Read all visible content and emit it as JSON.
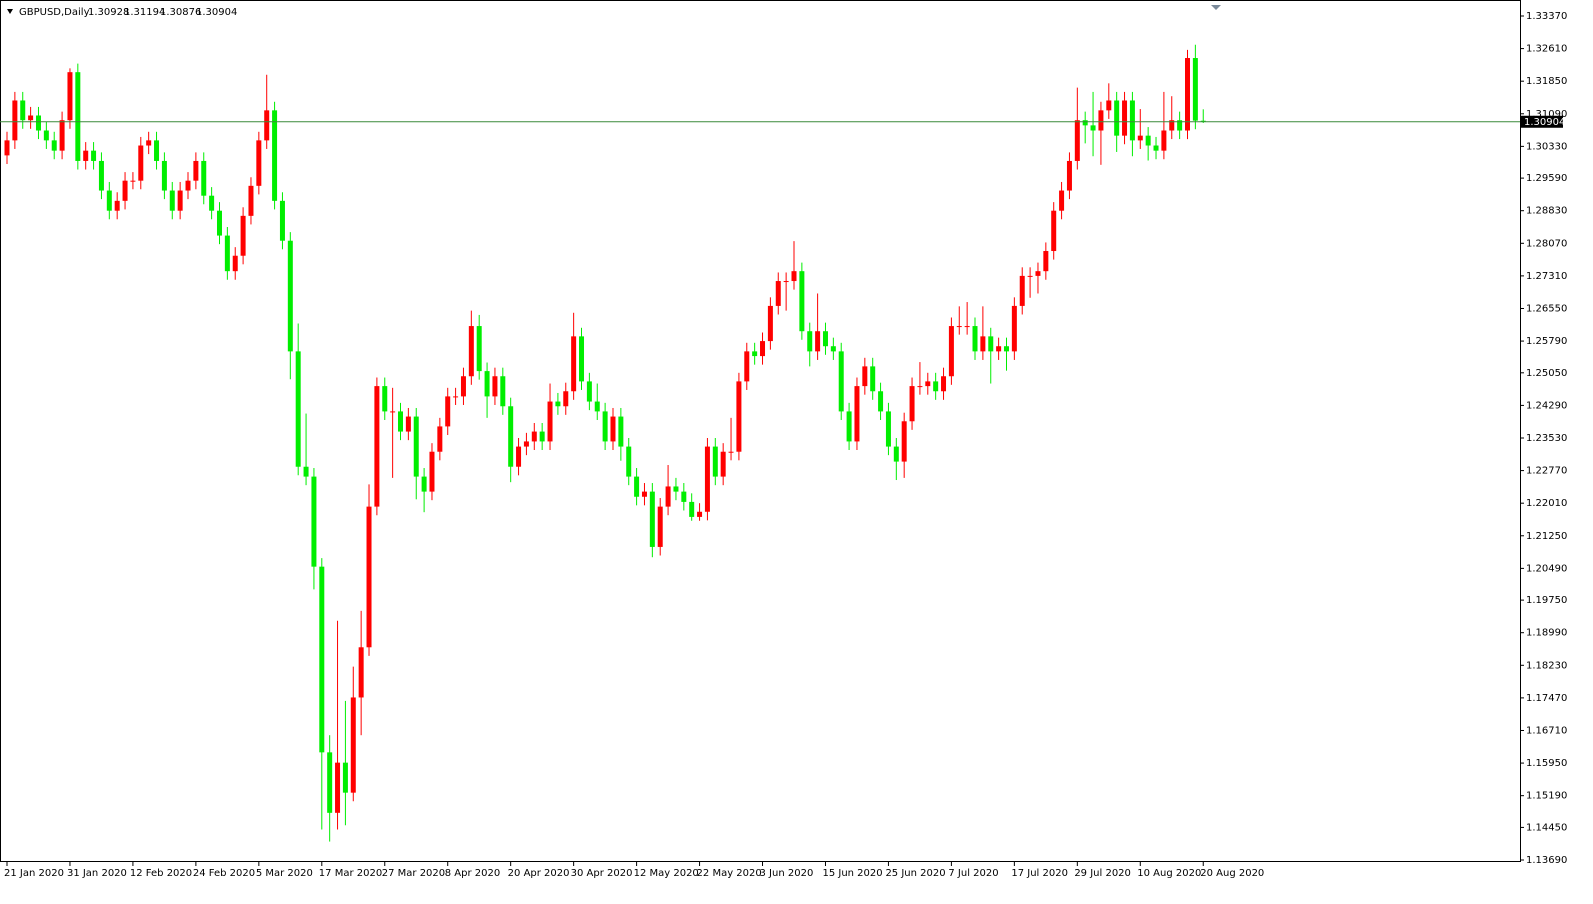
{
  "chart_data": {
    "type": "candlestick",
    "title": "GBPUSD,Daily",
    "categories": [
      "21 Jan 2020",
      null,
      null,
      null,
      null,
      null,
      null,
      null,
      "31 Jan 2020",
      null,
      null,
      null,
      null,
      null,
      null,
      null,
      "12 Feb 2020",
      null,
      null,
      null,
      null,
      null,
      null,
      null,
      "24 Feb 2020",
      null,
      null,
      null,
      null,
      null,
      null,
      null,
      "5 Mar 2020",
      null,
      null,
      null,
      null,
      null,
      null,
      null,
      "17 Mar 2020",
      null,
      null,
      null,
      null,
      null,
      null,
      null,
      "27 Mar 2020",
      null,
      null,
      null,
      null,
      null,
      null,
      null,
      "8 Apr 2020",
      null,
      null,
      null,
      null,
      null,
      null,
      null,
      "20 Apr 2020",
      null,
      null,
      null,
      null,
      null,
      null,
      null,
      "30 Apr 2020",
      null,
      null,
      null,
      null,
      null,
      null,
      null,
      "12 May 2020",
      null,
      null,
      null,
      null,
      null,
      null,
      null,
      "22 May 2020",
      null,
      null,
      null,
      null,
      null,
      null,
      null,
      "3 Jun 2020",
      null,
      null,
      null,
      null,
      null,
      null,
      null,
      "15 Jun 2020",
      null,
      null,
      null,
      null,
      null,
      null,
      null,
      "25 Jun 2020",
      null,
      null,
      null,
      null,
      null,
      null,
      null,
      "7 Jul 2020",
      null,
      null,
      null,
      null,
      null,
      null,
      null,
      "17 Jul 2020",
      null,
      null,
      null,
      null,
      null,
      null,
      null,
      "29 Jul 2020",
      null,
      null,
      null,
      null,
      null,
      null,
      null,
      "10 Aug 2020",
      null,
      null,
      null,
      null,
      null,
      null,
      null,
      "20 Aug 2020"
    ],
    "open": [
      1.3012,
      1.3047,
      1.314,
      1.3094,
      1.3105,
      1.307,
      1.3047,
      1.3023,
      1.3094,
      1.3206,
      1.2999,
      1.3023,
      1.2999,
      1.293,
      1.2883,
      1.2906,
      1.2953,
      1.2953,
      1.3035,
      1.3047,
      1.2999,
      1.293,
      1.2883,
      1.293,
      1.2953,
      1.2999,
      1.2918,
      1.2883,
      1.2825,
      1.2742,
      1.2778,
      1.2871,
      1.2941,
      1.3047,
      1.3117,
      1.2906,
      1.2813,
      1.2555,
      1.2286,
      1.2263,
      1.2053,
      1.162,
      1.1479,
      1.1596,
      1.1526,
      1.1748,
      1.1865,
      1.2193,
      1.2474,
      1.2415,
      1.2415,
      1.2368,
      1.2403,
      1.2263,
      1.2228,
      1.2321,
      1.238,
      1.245,
      1.245,
      1.2497,
      1.2614,
      1.2509,
      1.245,
      1.2497,
      1.2427,
      1.2286,
      1.2333,
      1.2345,
      1.2368,
      1.2345,
      1.2438,
      1.2427,
      1.2462,
      1.259,
      1.2485,
      1.2438,
      1.2415,
      1.2345,
      1.2403,
      1.2333,
      1.2263,
      1.2216,
      1.2228,
      1.2099,
      1.2193,
      1.224,
      1.2228,
      1.2204,
      1.2169,
      1.2181,
      1.2333,
      1.2263,
      1.2321,
      1.2321,
      1.2485,
      1.2555,
      1.2544,
      1.2579,
      1.2661,
      1.2719,
      1.2719,
      1.2742,
      1.2602,
      1.2555,
      1.2602,
      1.2567,
      1.2555,
      1.2415,
      1.2345,
      1.2474,
      1.252,
      1.2462,
      1.2415,
      1.2333,
      1.2298,
      1.2392,
      1.2474,
      1.2474,
      1.2485,
      1.2462,
      1.2497,
      1.2614,
      1.2614,
      1.2614,
      1.2555,
      1.259,
      1.2555,
      1.2567,
      1.2555,
      1.2661,
      1.2731,
      1.2731,
      1.2742,
      1.2789,
      1.2883,
      1.293,
      1.2999,
      1.3094,
      1.3082,
      1.307,
      1.3117,
      1.314,
      1.3058,
      1.314,
      1.3047,
      1.3058,
      1.3035,
      1.3023,
      1.307,
      1.3094,
      1.307,
      1.3239,
      1.30928
    ],
    "high": [
      1.3067,
      1.316,
      1.316,
      1.3125,
      1.3125,
      1.309,
      1.3067,
      1.3114,
      1.3215,
      1.3226,
      1.3043,
      1.3043,
      1.3019,
      1.295,
      1.2926,
      1.2973,
      1.2973,
      1.3055,
      1.3067,
      1.3067,
      1.3019,
      1.295,
      1.295,
      1.2973,
      1.3019,
      1.3019,
      1.2938,
      1.2903,
      1.2845,
      1.2798,
      1.2891,
      1.2961,
      1.3067,
      1.32,
      1.3137,
      1.2926,
      1.2833,
      1.262,
      1.241,
      1.2283,
      1.2073,
      1.166,
      1.1927,
      1.174,
      1.182,
      1.195,
      1.2245,
      1.2494,
      1.2494,
      1.247,
      1.2435,
      1.2423,
      1.2423,
      1.2283,
      1.2341,
      1.24,
      1.247,
      1.247,
      1.2517,
      1.265,
      1.264,
      1.2529,
      1.2517,
      1.2517,
      1.2447,
      1.2353,
      1.2365,
      1.2388,
      1.2388,
      1.248,
      1.2458,
      1.2482,
      1.2645,
      1.261,
      1.2505,
      1.248,
      1.2435,
      1.2423,
      1.2423,
      1.2353,
      1.2283,
      1.2248,
      1.2248,
      1.2213,
      1.229,
      1.226,
      1.2248,
      1.2224,
      1.2201,
      1.2353,
      1.2353,
      1.2341,
      1.24,
      1.2505,
      1.2575,
      1.2575,
      1.2599,
      1.2681,
      1.2739,
      1.2739,
      1.2812,
      1.2762,
      1.2622,
      1.269,
      1.2622,
      1.2587,
      1.2575,
      1.2435,
      1.2494,
      1.254,
      1.254,
      1.2482,
      1.2435,
      1.2353,
      1.2412,
      1.2494,
      1.253,
      1.2505,
      1.2505,
      1.2517,
      1.2634,
      1.266,
      1.267,
      1.2634,
      1.266,
      1.261,
      1.2587,
      1.2587,
      1.2681,
      1.2751,
      1.2751,
      1.2762,
      1.2809,
      1.2903,
      1.295,
      1.3019,
      1.317,
      1.3114,
      1.316,
      1.3137,
      1.318,
      1.316,
      1.316,
      1.316,
      1.312,
      1.3078,
      1.3055,
      1.316,
      1.315,
      1.3114,
      1.3258,
      1.327,
      1.31194
    ],
    "low": [
      1.2992,
      1.3027,
      1.3074,
      1.3074,
      1.305,
      1.3027,
      1.3003,
      1.3003,
      1.3074,
      1.2979,
      1.2979,
      1.2979,
      1.291,
      1.2863,
      1.2863,
      1.2886,
      1.2933,
      1.2933,
      1.3015,
      1.2979,
      1.291,
      1.2863,
      1.2863,
      1.291,
      1.2933,
      1.2898,
      1.2863,
      1.2805,
      1.2722,
      1.2722,
      1.2758,
      1.2851,
      1.2921,
      1.3027,
      1.2886,
      1.2793,
      1.249,
      1.2266,
      1.2243,
      1.2,
      1.144,
      1.1412,
      1.144,
      1.145,
      1.1506,
      1.166,
      1.1845,
      1.2173,
      1.2395,
      1.226,
      1.2348,
      1.2348,
      1.221,
      1.218,
      1.2208,
      1.2301,
      1.236,
      1.243,
      1.243,
      1.2477,
      1.2489,
      1.24,
      1.243,
      1.2407,
      1.225,
      1.2266,
      1.2313,
      1.2325,
      1.2325,
      1.2325,
      1.2407,
      1.2407,
      1.2442,
      1.2465,
      1.2418,
      1.2395,
      1.2325,
      1.2325,
      1.23,
      1.2243,
      1.2196,
      1.2196,
      1.2075,
      1.2079,
      1.2173,
      1.2208,
      1.2184,
      1.216,
      1.216,
      1.2161,
      1.2243,
      1.2243,
      1.2301,
      1.2301,
      1.2465,
      1.2524,
      1.2524,
      1.2559,
      1.2641,
      1.265,
      1.2699,
      1.2582,
      1.252,
      1.2535,
      1.2547,
      1.2535,
      1.2395,
      1.2325,
      1.2325,
      1.2454,
      1.2442,
      1.2395,
      1.2313,
      1.2255,
      1.226,
      1.2372,
      1.2454,
      1.2454,
      1.2442,
      1.2442,
      1.2477,
      1.2594,
      1.2594,
      1.2535,
      1.2535,
      1.248,
      1.2535,
      1.251,
      1.2535,
      1.2641,
      1.268,
      1.269,
      1.2722,
      1.2769,
      1.2863,
      1.291,
      1.2979,
      1.304,
      1.301,
      1.299,
      1.3097,
      1.302,
      1.3038,
      1.301,
      1.3027,
      1.3,
      1.3003,
      1.3003,
      1.305,
      1.305,
      1.305,
      1.3073,
      1.30876
    ],
    "close": [
      1.3047,
      1.314,
      1.3094,
      1.3105,
      1.307,
      1.3047,
      1.3023,
      1.3094,
      1.3206,
      1.2999,
      1.3023,
      1.2999,
      1.293,
      1.2883,
      1.2906,
      1.2953,
      1.2953,
      1.3035,
      1.3047,
      1.2999,
      1.293,
      1.2883,
      1.293,
      1.2953,
      1.2999,
      1.2918,
      1.2883,
      1.2825,
      1.2742,
      1.2778,
      1.2871,
      1.2941,
      1.3047,
      1.3117,
      1.2906,
      1.2813,
      1.2555,
      1.2286,
      1.2263,
      1.2053,
      1.162,
      1.1479,
      1.1596,
      1.1526,
      1.1748,
      1.1865,
      1.2193,
      1.2474,
      1.2415,
      1.2415,
      1.2368,
      1.2403,
      1.2263,
      1.2228,
      1.2321,
      1.238,
      1.245,
      1.245,
      1.2497,
      1.2614,
      1.2509,
      1.245,
      1.2497,
      1.2427,
      1.2286,
      1.2333,
      1.2345,
      1.2368,
      1.2345,
      1.2438,
      1.2427,
      1.2462,
      1.259,
      1.2485,
      1.2438,
      1.2415,
      1.2345,
      1.2403,
      1.2333,
      1.2263,
      1.2216,
      1.2228,
      1.2099,
      1.2193,
      1.224,
      1.2228,
      1.2204,
      1.2169,
      1.2181,
      1.2333,
      1.2263,
      1.2321,
      1.2321,
      1.2485,
      1.2555,
      1.2544,
      1.2579,
      1.2661,
      1.2719,
      1.2719,
      1.2742,
      1.2602,
      1.2555,
      1.2602,
      1.2567,
      1.2555,
      1.2415,
      1.2345,
      1.2474,
      1.252,
      1.2462,
      1.2415,
      1.2333,
      1.2298,
      1.2392,
      1.2474,
      1.2474,
      1.2485,
      1.2462,
      1.2497,
      1.2614,
      1.2614,
      1.2614,
      1.2555,
      1.259,
      1.2555,
      1.2567,
      1.2555,
      1.2661,
      1.2731,
      1.2731,
      1.2742,
      1.2789,
      1.2883,
      1.293,
      1.2999,
      1.3094,
      1.3082,
      1.307,
      1.3117,
      1.314,
      1.3058,
      1.314,
      1.3047,
      1.3058,
      1.3035,
      1.3023,
      1.307,
      1.3094,
      1.307,
      1.3239,
      1.3093,
      1.30904
    ],
    "up_color": "#ff0000",
    "down_color": "#00ee00",
    "price_line_color": "#3a8a3a",
    "ylim": [
      1.1369,
      1.3337
    ],
    "yticks": [
      {
        "value": 1.3337,
        "label": "1.33370"
      },
      {
        "value": 1.3261,
        "label": "1.32610"
      },
      {
        "value": 1.3185,
        "label": "1.31850"
      },
      {
        "value": 1.3109,
        "label": "1.31090"
      },
      {
        "value": 1.3033,
        "label": "1.30330"
      },
      {
        "value": 1.2959,
        "label": "1.29590"
      },
      {
        "value": 1.2883,
        "label": "1.28830"
      },
      {
        "value": 1.2807,
        "label": "1.28070"
      },
      {
        "value": 1.2731,
        "label": "1.27310"
      },
      {
        "value": 1.2655,
        "label": "1.26550"
      },
      {
        "value": 1.2579,
        "label": "1.25790"
      },
      {
        "value": 1.2505,
        "label": "1.25050"
      },
      {
        "value": 1.2429,
        "label": "1.24290"
      },
      {
        "value": 1.2353,
        "label": "1.23530"
      },
      {
        "value": 1.2277,
        "label": "1.22770"
      },
      {
        "value": 1.2201,
        "label": "1.22010"
      },
      {
        "value": 1.2125,
        "label": "1.21250"
      },
      {
        "value": 1.2049,
        "label": "1.20490"
      },
      {
        "value": 1.1975,
        "label": "1.19750"
      },
      {
        "value": 1.1899,
        "label": "1.18990"
      },
      {
        "value": 1.1823,
        "label": "1.18230"
      },
      {
        "value": 1.1747,
        "label": "1.17470"
      },
      {
        "value": 1.1671,
        "label": "1.16710"
      },
      {
        "value": 1.1595,
        "label": "1.15950"
      },
      {
        "value": 1.1519,
        "label": "1.15190"
      },
      {
        "value": 1.1445,
        "label": "1.14450"
      },
      {
        "value": 1.1369,
        "label": "1.13690"
      }
    ],
    "grid": false
  }
}
